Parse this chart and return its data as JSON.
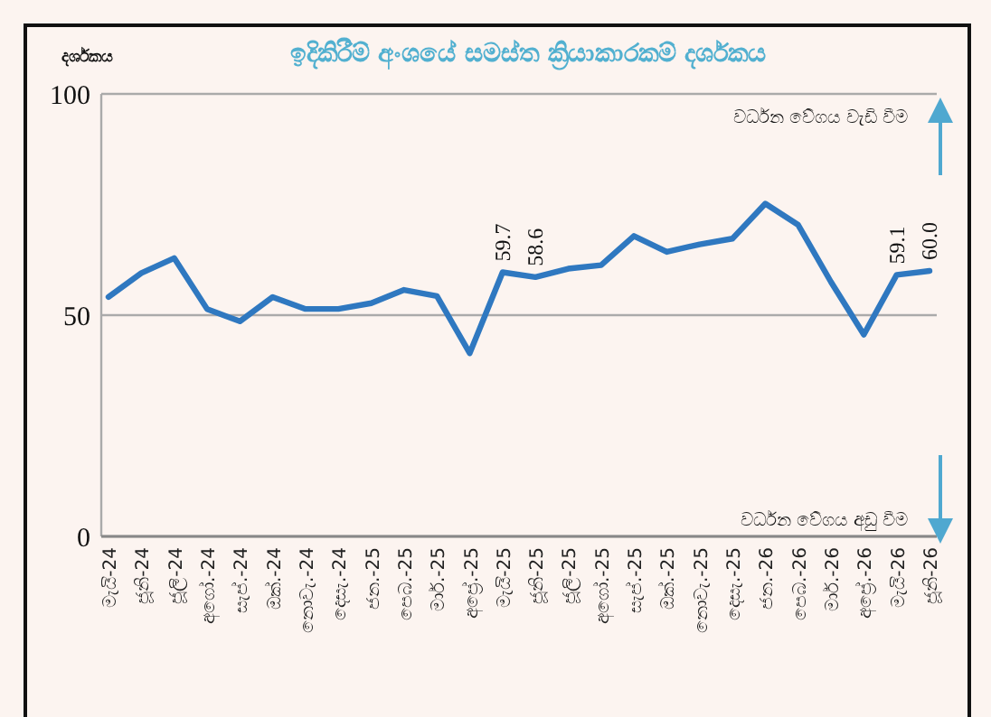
{
  "chart_data": {
    "type": "line",
    "title": "ඉදිකිරීම් අංශයේ සමස්ත ක්‍රියාකාරකම් දර්ශකය",
    "ylabel": "දර්ශකය",
    "categories": [
      "මැයි-24",
      "ජූනි-24",
      "ජූලි-24",
      "අගෝ.-24",
      "සැප්.-24",
      "ඔක්.-24",
      "නොවැ.-24",
      "දෙසැ.-24",
      "ජන.-25",
      "පෙබ.-25",
      "මාර්.-25",
      "අප්‍රේ.-25",
      "මැයි-25",
      "ජූනි-25",
      "ජූලි-25",
      "අගෝ.-25",
      "සැප්.-25",
      "ඔක්.-25",
      "නොවැ.-25",
      "දෙසැ.-25",
      "ජන.-26",
      "පෙබ.-26",
      "මාර්.-26",
      "අප්‍රේ.-26",
      "මැයි-26",
      "ජූනි-26"
    ],
    "series": [
      {
        "color": "#2f78c0",
        "values": [
          54.1,
          59.5,
          62.9,
          51.4,
          48.6,
          54.1,
          51.4,
          51.4,
          52.7,
          55.7,
          54.3,
          41.4,
          59.7,
          58.6,
          60.5,
          61.3,
          67.9,
          64.3,
          66.0,
          67.3,
          75.2,
          70.4,
          57.5,
          45.6,
          59.1,
          60.0
        ],
        "value_labels": [
          null,
          null,
          null,
          null,
          null,
          null,
          null,
          null,
          null,
          null,
          null,
          null,
          "59.7",
          "58.6",
          null,
          null,
          null,
          null,
          null,
          null,
          null,
          null,
          null,
          null,
          "59.1",
          "60.0"
        ]
      }
    ],
    "ylim": [
      0,
      100
    ],
    "yticks": [
      0,
      50,
      100
    ],
    "grid": "y",
    "marker": "none",
    "line_style": "solid",
    "annotations": [
      "වර්ධන වේගය වැඩි වීම",
      "වර්ධන වේගය අඩු වීම"
    ]
  }
}
